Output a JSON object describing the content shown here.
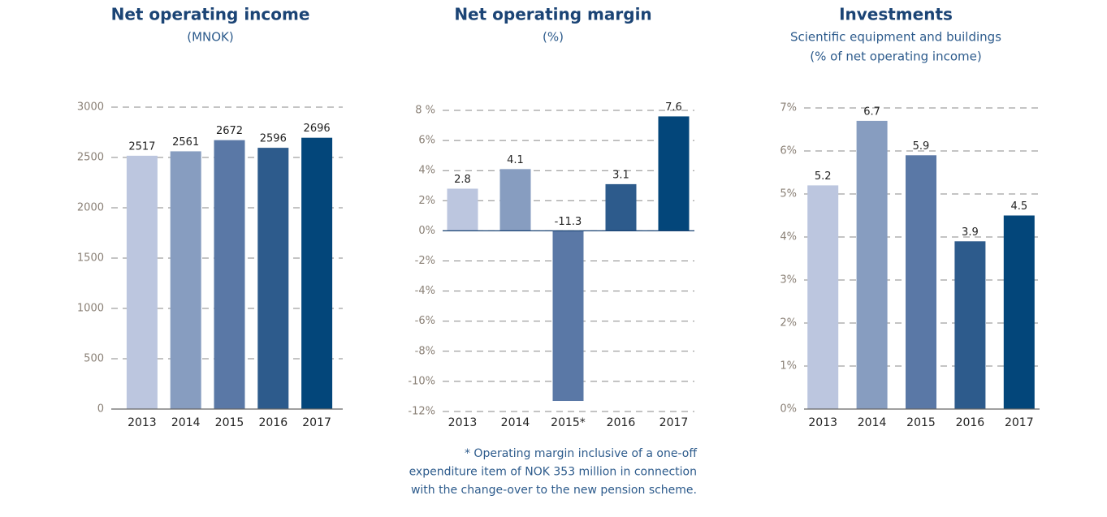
{
  "chart_data": [
    {
      "type": "bar",
      "title": "Net operating income",
      "subtitle": [
        "(MNOK)"
      ],
      "categories": [
        "2013",
        "2014",
        "2015",
        "2016",
        "2017"
      ],
      "values": [
        2517,
        2561,
        2672,
        2596,
        2696
      ],
      "colors": [
        "#bcc6df",
        "#879dc0",
        "#5a78a6",
        "#2d5b8c",
        "#03467a"
      ],
      "ylim": [
        0,
        3000
      ],
      "yticks": [
        0,
        500,
        1000,
        1500,
        2000,
        2500,
        3000
      ],
      "grid": true
    },
    {
      "type": "bar",
      "title": "Net operating margin",
      "subtitle": [
        "(%)"
      ],
      "categories": [
        "2013",
        "2014",
        "2015*",
        "2016",
        "2017"
      ],
      "values": [
        2.8,
        4.1,
        -11.3,
        3.1,
        7.6
      ],
      "colors": [
        "#bcc6df",
        "#879dc0",
        "#5a78a6",
        "#2d5b8c",
        "#03467a"
      ],
      "ylim": [
        -12,
        8
      ],
      "yticks": [
        {
          "value": -12,
          "label": "-12%"
        },
        {
          "value": -10,
          "label": "-10%"
        },
        {
          "value": -8,
          "label": "-8%"
        },
        {
          "value": -6,
          "label": "-6%"
        },
        {
          "value": -4,
          "label": "-4%"
        },
        {
          "value": -2,
          "label": "-2%"
        },
        {
          "value": 0,
          "label": "0%"
        },
        {
          "value": 2,
          "label": "2%"
        },
        {
          "value": 4,
          "label": "4%"
        },
        {
          "value": 6,
          "label": "6%"
        },
        {
          "value": 8,
          "label": "8 %"
        }
      ],
      "grid": true,
      "footnote": [
        "* Operating margin inclusive of a one-off",
        "expenditure item of NOK 353 million in connection",
        "with the change-over to the new pension scheme."
      ]
    },
    {
      "type": "bar",
      "title": "Investments",
      "subtitle": [
        "Scientific equipment and buildings",
        "(% of net operating income)"
      ],
      "categories": [
        "2013",
        "2014",
        "2015",
        "2016",
        "2017"
      ],
      "values": [
        5.2,
        6.7,
        5.9,
        3.9,
        4.5
      ],
      "colors": [
        "#bcc6df",
        "#879dc0",
        "#5a78a6",
        "#2d5b8c",
        "#03467a"
      ],
      "ylim": [
        0,
        7
      ],
      "yticks": [
        {
          "value": 0,
          "label": "0%"
        },
        {
          "value": 1,
          "label": "1%"
        },
        {
          "value": 2,
          "label": "2%"
        },
        {
          "value": 3,
          "label": "3%"
        },
        {
          "value": 4,
          "label": "4%"
        },
        {
          "value": 5,
          "label": "5%"
        },
        {
          "value": 6,
          "label": "6%"
        },
        {
          "value": 7,
          "label": "7%"
        }
      ],
      "grid": true
    }
  ]
}
